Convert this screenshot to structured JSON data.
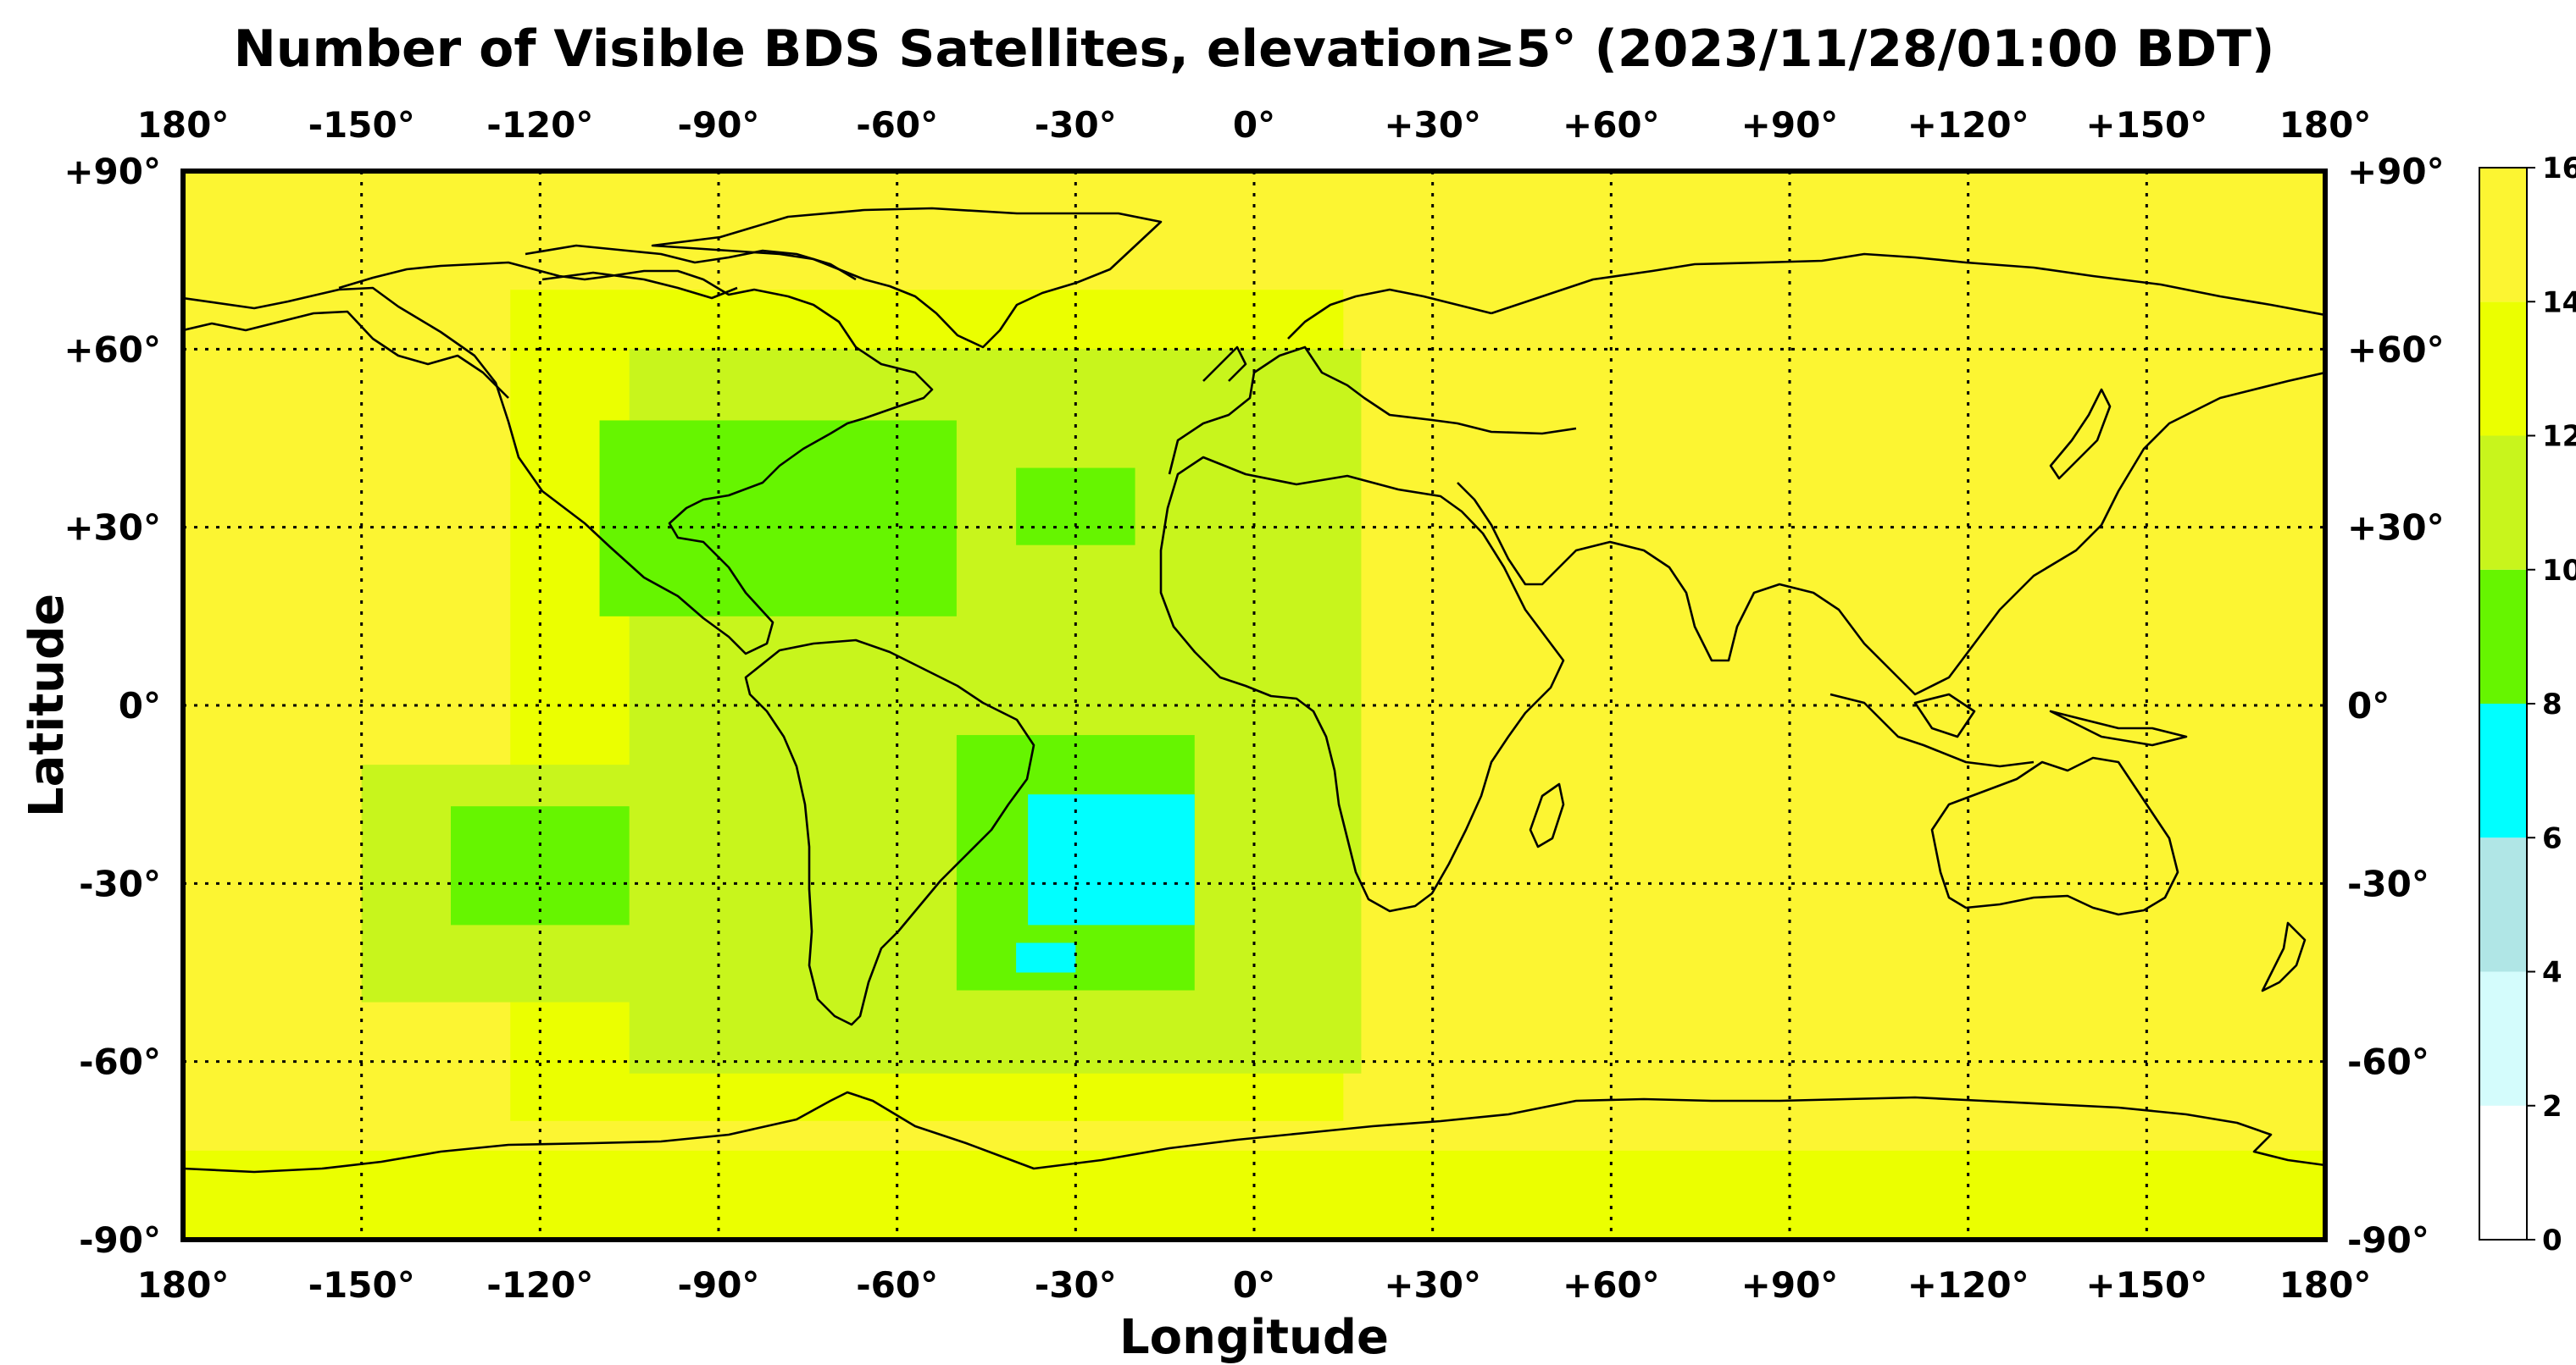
{
  "title": "Number of Visible BDS Satellites, elevation≥5° (2023/11/28/01:00 BDT)",
  "xlabel": "Longitude",
  "ylabel": "Latitude",
  "lon_ticks": [
    {
      "value": -180,
      "label": "180°"
    },
    {
      "value": -150,
      "label": "-150°"
    },
    {
      "value": -120,
      "label": "-120°"
    },
    {
      "value": -90,
      "label": "-90°"
    },
    {
      "value": -60,
      "label": "-60°"
    },
    {
      "value": -30,
      "label": "-30°"
    },
    {
      "value": 0,
      "label": "0°"
    },
    {
      "value": 30,
      "label": "+30°"
    },
    {
      "value": 60,
      "label": "+60°"
    },
    {
      "value": 90,
      "label": "+90°"
    },
    {
      "value": 120,
      "label": "+120°"
    },
    {
      "value": 150,
      "label": "+150°"
    },
    {
      "value": 180,
      "label": "180°"
    }
  ],
  "lat_ticks": [
    {
      "value": 90,
      "label": "+90°"
    },
    {
      "value": 60,
      "label": "+60°"
    },
    {
      "value": 30,
      "label": "+30°"
    },
    {
      "value": 0,
      "label": "0°"
    },
    {
      "value": -30,
      "label": "-30°"
    },
    {
      "value": -60,
      "label": "-60°"
    },
    {
      "value": -90,
      "label": "-90°"
    }
  ],
  "colorbar": {
    "ticks": [
      "0",
      "2",
      "4",
      "6",
      "8",
      "10",
      "12",
      "14",
      "16"
    ],
    "bands": [
      {
        "from": 0,
        "to": 2,
        "color": "#ffffff"
      },
      {
        "from": 2,
        "to": 4,
        "color": "#d4fcfc"
      },
      {
        "from": 4,
        "to": 6,
        "color": "#b0e6e6"
      },
      {
        "from": 6,
        "to": 8,
        "color": "#00ffff"
      },
      {
        "from": 8,
        "to": 10,
        "color": "#66f500"
      },
      {
        "from": 10,
        "to": 12,
        "color": "#c8f51c"
      },
      {
        "from": 12,
        "to": 14,
        "color": "#ebff00"
      },
      {
        "from": 14,
        "to": 16,
        "color": "#fcf532"
      }
    ]
  },
  "chart_data": {
    "type": "heatmap",
    "xlim": [
      -180,
      180
    ],
    "ylim": [
      -90,
      90
    ],
    "value_range": [
      0,
      16
    ],
    "background_level": 15,
    "regions": [
      {
        "level": 13,
        "lon": [
          -180,
          180
        ],
        "lat": [
          -90,
          -75
        ]
      },
      {
        "level": 13,
        "lon": [
          -125,
          15
        ],
        "lat": [
          -70,
          70
        ]
      },
      {
        "level": 11,
        "lon": [
          -105,
          18
        ],
        "lat": [
          -62,
          60
        ]
      },
      {
        "level": 11,
        "lon": [
          -150,
          -100
        ],
        "lat": [
          -50,
          -10
        ]
      },
      {
        "level": 9,
        "lon": [
          -135,
          -105
        ],
        "lat": [
          -37,
          -17
        ]
      },
      {
        "level": 9,
        "lon": [
          -110,
          -50
        ],
        "lat": [
          15,
          48
        ]
      },
      {
        "level": 9,
        "lon": [
          -40,
          -20
        ],
        "lat": [
          27,
          40
        ]
      },
      {
        "level": 9,
        "lon": [
          -50,
          -10
        ],
        "lat": [
          -48,
          -5
        ]
      },
      {
        "level": 7,
        "lon": [
          -38,
          -10
        ],
        "lat": [
          -37,
          -15
        ]
      },
      {
        "level": 7,
        "lon": [
          -40,
          -30
        ],
        "lat": [
          -45,
          -40
        ]
      }
    ]
  }
}
